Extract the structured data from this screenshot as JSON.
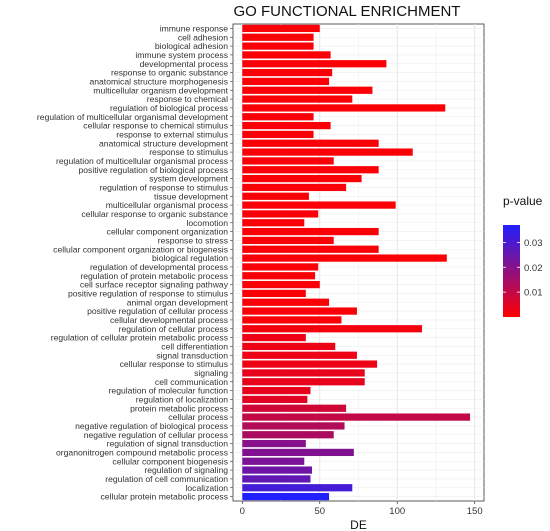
{
  "chart_data": {
    "type": "bar",
    "orientation": "horizontal",
    "title": "GO FUNCTIONAL ENRICHMENT",
    "xlabel": "DE",
    "ylabel": "",
    "xlim": [
      0,
      150
    ],
    "xticks": [
      0,
      50,
      100,
      150
    ],
    "grid": true,
    "legend": {
      "title": "p-value",
      "placement": "right",
      "type": "colorbar",
      "ticks": [
        0.01,
        0.02,
        0.03
      ],
      "range": [
        0.0,
        0.037
      ],
      "color_low": "#FF0000",
      "color_high": "#2020FF"
    },
    "categories": [
      "immune response",
      "cell adhesion",
      "biological adhesion",
      "immune system process",
      "developmental process",
      "response to organic substance",
      "anatomical structure morphogenesis",
      "multicellular organism development",
      "response to chemical",
      "regulation of biological process",
      "regulation of multicellular organismal development",
      "cellular response to chemical stimulus",
      "response to external stimulus",
      "anatomical structure development",
      "response to stimulus",
      "regulation of multicellular organismal process",
      "positive regulation of biological process",
      "system development",
      "regulation of response to stimulus",
      "tissue development",
      "multicellular organismal process",
      "cellular response to organic substance",
      "locomotion",
      "cellular component organization",
      "response to stress",
      "cellular component organization or biogenesis",
      "biological regulation",
      "regulation of developmental process",
      "regulation of protein metabolic process",
      "cell surface receptor signaling pathway",
      "positive regulation of response to stimulus",
      "animal organ development",
      "positive regulation of cellular process",
      "cellular developmental process",
      "regulation of cellular process",
      "regulation of cellular protein metabolic process",
      "cell differentiation",
      "signal transduction",
      "cellular response to stimulus",
      "signaling",
      "cell communication",
      "regulation of molecular function",
      "regulation of localization",
      "protein metabolic process",
      "cellular process",
      "negative regulation of biological process",
      "negative regulation of cellular process",
      "regulation of signal transduction",
      "organonitrogen compound metabolic process",
      "cellular component biogenesis",
      "regulation of signaling",
      "regulation of cell communication",
      "localization",
      "cellular protein metabolic process"
    ],
    "values": [
      50,
      46,
      46,
      57,
      93,
      58,
      56,
      84,
      71,
      131,
      46,
      57,
      46,
      88,
      110,
      59,
      88,
      77,
      67,
      43,
      99,
      49,
      40,
      88,
      59,
      88,
      132,
      49,
      47,
      50,
      41,
      56,
      74,
      64,
      116,
      41,
      60,
      74,
      87,
      79,
      79,
      44,
      42,
      67,
      147,
      66,
      59,
      41,
      72,
      40,
      45,
      44,
      71,
      56
    ],
    "pvalues": [
      0.001,
      0.001,
      0.001,
      0.001,
      0.001,
      0.001,
      0.001,
      0.001,
      0.001,
      0.001,
      0.001,
      0.001,
      0.001,
      0.001,
      0.001,
      0.001,
      0.001,
      0.001,
      0.001,
      0.001,
      0.001,
      0.001,
      0.001,
      0.001,
      0.001,
      0.001,
      0.001,
      0.001,
      0.001,
      0.001,
      0.001,
      0.001,
      0.001,
      0.001,
      0.002,
      0.003,
      0.003,
      0.003,
      0.003,
      0.004,
      0.004,
      0.004,
      0.005,
      0.008,
      0.01,
      0.013,
      0.014,
      0.02,
      0.021,
      0.022,
      0.024,
      0.026,
      0.031,
      0.037
    ]
  }
}
